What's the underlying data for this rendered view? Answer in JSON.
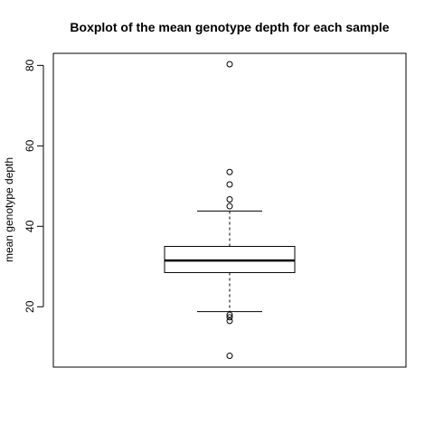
{
  "chart_data": {
    "type": "boxplot",
    "title": "Boxplot of the mean genotype depth for each sample",
    "xlabel": "",
    "ylabel": "mean genotype depth",
    "ylim": [
      5,
      83
    ],
    "yticks": [
      20,
      40,
      60,
      80
    ],
    "grid": false,
    "box": {
      "median": 31.5,
      "q1": 28.5,
      "q3": 35.0,
      "whisker_low": 18.8,
      "whisker_high": 43.8
    },
    "outliers": [
      80.3,
      53.5,
      50.4,
      46.7,
      45.0,
      18.0,
      17.4,
      16.5,
      7.8
    ]
  }
}
